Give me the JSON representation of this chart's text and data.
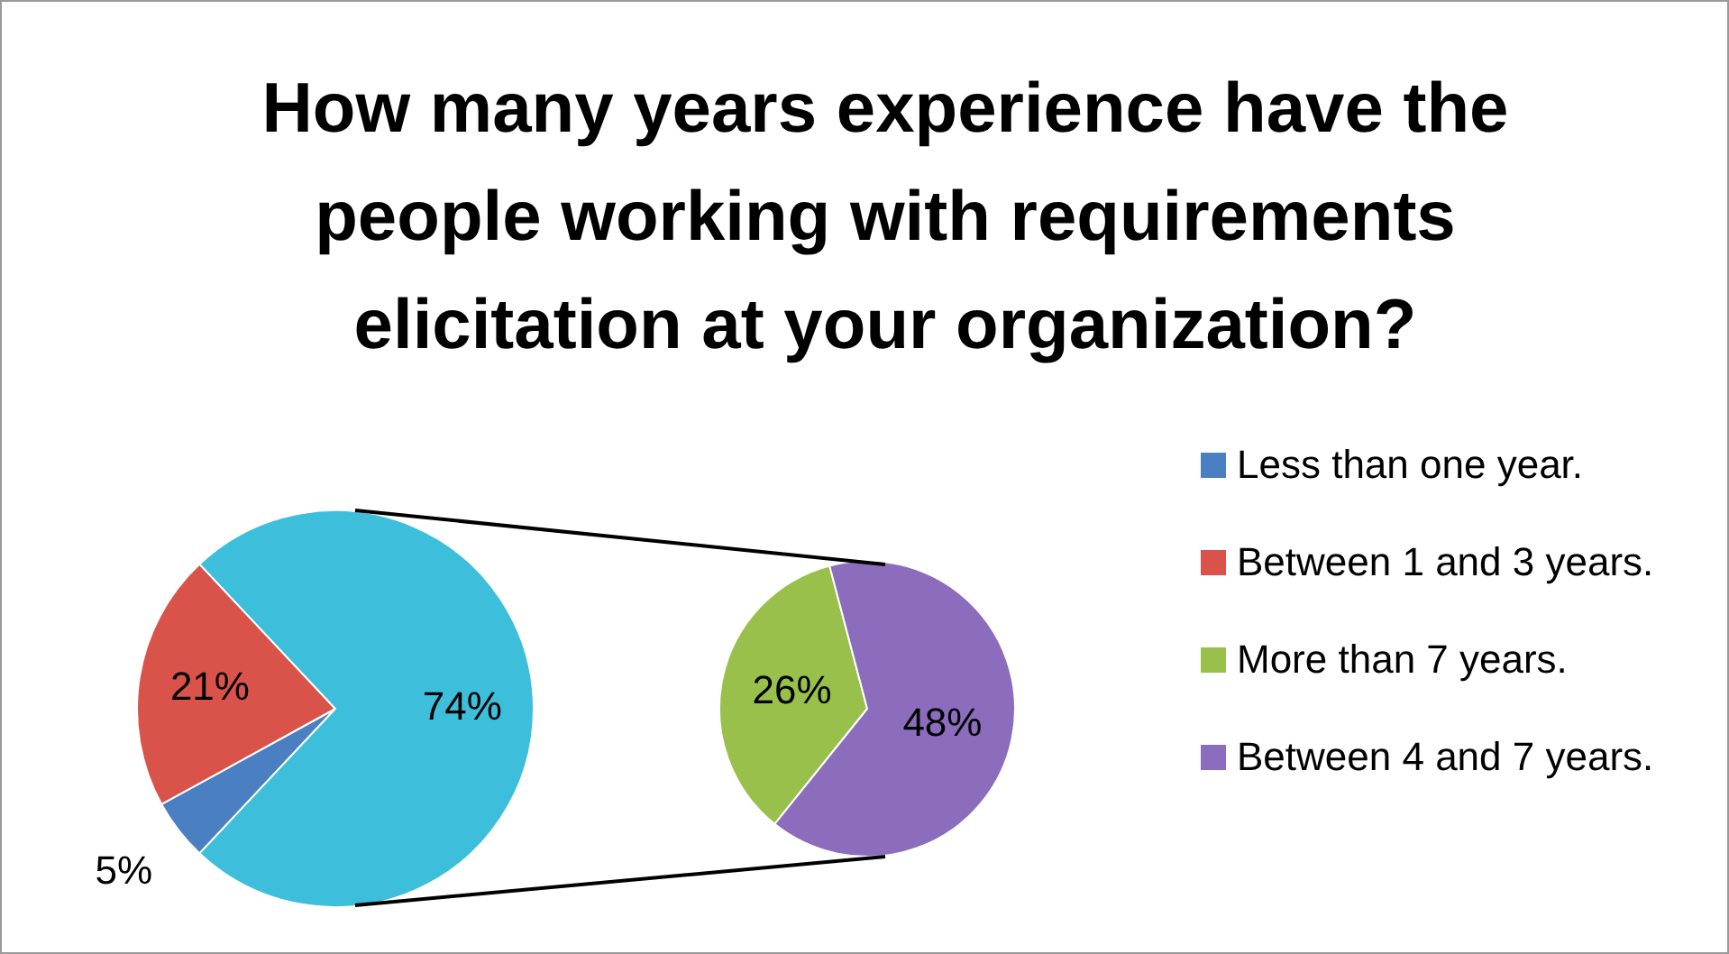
{
  "chart_data": [
    {
      "type": "pie",
      "title": "How many years experience have the people working with requirements elicitation at your organization?",
      "categories": [
        "Less than one year.",
        "Between 1 and 3 years.",
        null
      ],
      "values": [
        5,
        21,
        74
      ],
      "colors": [
        "#4a7fc1",
        "#d9534a",
        "#3dbfdb"
      ],
      "value_labels": [
        "5%",
        "21%",
        "74%"
      ],
      "legend": "right"
    },
    {
      "type": "pie",
      "categories": [
        "More than 7 years.",
        "Between 4 and 7 years."
      ],
      "values": [
        26,
        48
      ],
      "colors": [
        "#98c04a",
        "#8c6cbd"
      ],
      "value_labels": [
        "26%",
        "48%"
      ],
      "legend": "right"
    }
  ]
}
